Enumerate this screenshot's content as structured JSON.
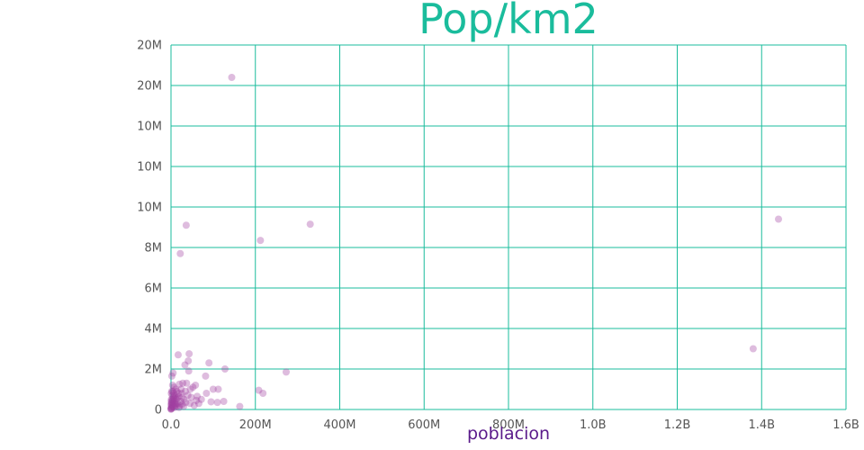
{
  "colors": {
    "title": "#1abc9c",
    "grid": "#1abc9c",
    "points": "#a040a0",
    "xlabel": "#5a1a8a"
  },
  "chart_data": {
    "type": "scatter",
    "title": "Pop/km2",
    "xlabel": "poblacion",
    "ylabel": "",
    "grid": true,
    "x_ticks": [
      "0.0",
      "200M",
      "400M",
      "600M",
      "800M",
      "1.0B",
      "1.2B",
      "1.4B",
      "1.6B"
    ],
    "y_ticks": [
      "0",
      "2M",
      "4M",
      "6M",
      "8M",
      "10M",
      "10M",
      "10M",
      "20M",
      "20M"
    ],
    "xlim": [
      0,
      1600000000
    ],
    "ylim": [
      0,
      18000000
    ],
    "series": [
      {
        "points": [
          [
            144000000,
            16400000
          ],
          [
            1440000000,
            9400000
          ],
          [
            1380000000,
            3000000
          ],
          [
            330000000,
            9150000
          ],
          [
            212000000,
            8350000
          ],
          [
            36000000,
            9100000
          ],
          [
            22000000,
            7700000
          ],
          [
            273000000,
            1850000
          ],
          [
            208000000,
            950000
          ],
          [
            218000000,
            800000
          ],
          [
            128000000,
            2000000
          ],
          [
            90000000,
            2300000
          ],
          [
            82000000,
            1650000
          ],
          [
            163000000,
            150000
          ],
          [
            43000000,
            2750000
          ],
          [
            17000000,
            2700000
          ],
          [
            41000000,
            2400000
          ],
          [
            33000000,
            2200000
          ],
          [
            42000000,
            1900000
          ],
          [
            5000000,
            1800000
          ],
          [
            2000000,
            1650000
          ],
          [
            112000000,
            1000000
          ],
          [
            100000000,
            1000000
          ],
          [
            125000000,
            400000
          ],
          [
            110000000,
            350000
          ],
          [
            95000000,
            380000
          ],
          [
            84000000,
            800000
          ],
          [
            72000000,
            500000
          ],
          [
            66000000,
            300000
          ],
          [
            58000000,
            1200000
          ],
          [
            52000000,
            1100000
          ],
          [
            48000000,
            600000
          ],
          [
            45000000,
            300000
          ],
          [
            37000000,
            1300000
          ],
          [
            34000000,
            900000
          ],
          [
            31000000,
            500000
          ],
          [
            28000000,
            1300000
          ],
          [
            25000000,
            800000
          ],
          [
            23000000,
            400000
          ],
          [
            20000000,
            1250000
          ],
          [
            18000000,
            650000
          ],
          [
            16000000,
            300000
          ],
          [
            14000000,
            900000
          ],
          [
            12000000,
            500000
          ],
          [
            11000000,
            1000000
          ],
          [
            10000000,
            200000
          ],
          [
            9000000,
            700000
          ],
          [
            8000000,
            400000
          ],
          [
            7000000,
            1100000
          ],
          [
            6000000,
            300000
          ],
          [
            5500000,
            600000
          ],
          [
            5000000,
            150000
          ],
          [
            4500000,
            900000
          ],
          [
            4000000,
            450000
          ],
          [
            3500000,
            250000
          ],
          [
            3000000,
            700000
          ],
          [
            2500000,
            100000
          ],
          [
            2000000,
            350000
          ],
          [
            1500000,
            200000
          ],
          [
            1000000,
            50000
          ],
          [
            800000,
            500000
          ],
          [
            600000,
            120000
          ],
          [
            400000,
            60000
          ],
          [
            300000,
            250000
          ],
          [
            200000,
            30000
          ],
          [
            100000,
            10000
          ],
          [
            60000000,
            450000
          ],
          [
            55000000,
            200000
          ],
          [
            62000000,
            650000
          ],
          [
            40000000,
            700000
          ],
          [
            46000000,
            1000000
          ],
          [
            30000000,
            150000
          ],
          [
            26000000,
            600000
          ],
          [
            21000000,
            200000
          ],
          [
            19000000,
            100000
          ],
          [
            15000000,
            550000
          ],
          [
            13000000,
            150000
          ],
          [
            9500000,
            300000
          ],
          [
            8500000,
            100000
          ],
          [
            7500000,
            550000
          ],
          [
            6500000,
            800000
          ],
          [
            3800000,
            1200000
          ],
          [
            2800000,
            500000
          ],
          [
            1800000,
            900000
          ],
          [
            1200000,
            300000
          ],
          [
            700000,
            800000
          ],
          [
            500000,
            400000
          ],
          [
            35000000,
            350000
          ],
          [
            27000000,
            250000
          ],
          [
            24000000,
            1000000
          ],
          [
            11500000,
            250000
          ],
          [
            10500000,
            600000
          ],
          [
            17500000,
            800000
          ]
        ]
      }
    ]
  }
}
